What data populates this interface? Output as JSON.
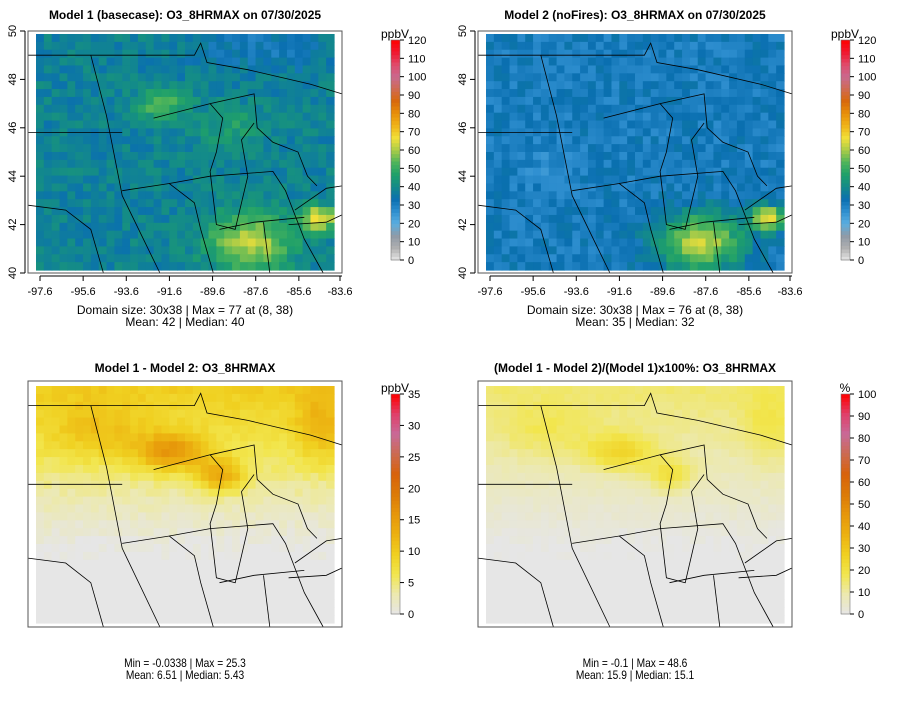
{
  "chart_data": [
    {
      "type": "heatmap",
      "title": "Model 1 (basecase): O3_8HRMAX on 07/30/2025",
      "unit": "ppbV",
      "xticks": [
        "-97.6",
        "-95.6",
        "-93.6",
        "-91.6",
        "-89.6",
        "-87.6",
        "-85.6",
        "-83.6"
      ],
      "yticks": [
        "40",
        "42",
        "44",
        "46",
        "48",
        "50"
      ],
      "xlim": [
        -98.0,
        -83.4
      ],
      "ylim": [
        40,
        50
      ],
      "colorbar": {
        "ticks": [
          "0",
          "10",
          "20",
          "30",
          "40",
          "50",
          "60",
          "70",
          "80",
          "90",
          "100",
          "110",
          "120"
        ],
        "range": [
          0,
          120
        ],
        "palette": "ozone"
      },
      "stats": {
        "line1": "Domain size: 30x38 | Max = 77 at (8, 38)",
        "line2": "Mean: 42 |  Median: 40"
      },
      "grid_summary": {
        "max": 77,
        "mean": 42,
        "median": 40
      }
    },
    {
      "type": "heatmap",
      "title": "Model 2 (noFires): O3_8HRMAX on 07/30/2025",
      "unit": "ppbV",
      "xticks": [
        "-97.6",
        "-95.6",
        "-93.6",
        "-91.6",
        "-89.6",
        "-87.6",
        "-85.6",
        "-83.6"
      ],
      "yticks": [
        "40",
        "42",
        "44",
        "46",
        "48",
        "50"
      ],
      "xlim": [
        -98.0,
        -83.4
      ],
      "ylim": [
        40,
        50
      ],
      "colorbar": {
        "ticks": [
          "0",
          "10",
          "20",
          "30",
          "40",
          "50",
          "60",
          "70",
          "80",
          "90",
          "100",
          "110",
          "120"
        ],
        "range": [
          0,
          120
        ],
        "palette": "ozone"
      },
      "stats": {
        "line1": "Domain size: 30x38 | Max = 76 at (8, 38)",
        "line2": "Mean: 35 |  Median: 32"
      },
      "grid_summary": {
        "max": 76,
        "mean": 35,
        "median": 32
      }
    },
    {
      "type": "heatmap",
      "title": "Model 1 - Model 2: O3_8HRMAX",
      "unit": "ppbV",
      "colorbar": {
        "ticks": [
          "0",
          "5",
          "10",
          "15",
          "20",
          "25",
          "30",
          "35"
        ],
        "range": [
          0,
          35
        ],
        "palette": "diff"
      },
      "stats": {
        "line1": "Min = -0.0338 | Max = 25.3",
        "line2": "Mean: 6.51 |  Median: 5.43"
      },
      "grid_summary": {
        "min": -0.0338,
        "max": 25.3,
        "mean": 6.51,
        "median": 5.43
      }
    },
    {
      "type": "heatmap",
      "title": "(Model 1 - Model 2)/(Model 1)x100%: O3_8HRMAX",
      "unit": "%",
      "colorbar": {
        "ticks": [
          "0",
          "10",
          "20",
          "30",
          "40",
          "50",
          "60",
          "70",
          "80",
          "90",
          "100"
        ],
        "range": [
          0,
          100
        ],
        "palette": "diff"
      },
      "stats": {
        "line1": "Min = -0.1 | Max = 48.6",
        "line2": "Mean: 15.9 |  Median: 15.1"
      },
      "grid_summary": {
        "min": -0.1,
        "max": 48.6,
        "mean": 15.9,
        "median": 15.1
      }
    }
  ],
  "palettes": {
    "ozone": [
      "#e6e6e6",
      "#b0b0b0",
      "#8f9aa6",
      "#5aaee0",
      "#2f8fd0",
      "#0a6fb0",
      "#138a8a",
      "#1fa06a",
      "#4db45a",
      "#a9cc48",
      "#f2e03a",
      "#f0b418",
      "#e8900a",
      "#d8680a",
      "#d06a50",
      "#c86a90",
      "#e04a6a",
      "#f01830",
      "#ff0000"
    ],
    "diff": [
      "#e6e6e6",
      "#ece9b0",
      "#f2e64e",
      "#f0d020",
      "#ecb010",
      "#e6960a",
      "#dc7a08",
      "#d8620a",
      "#cc6a50",
      "#c86a98",
      "#e0406a",
      "#ff0000"
    ]
  }
}
